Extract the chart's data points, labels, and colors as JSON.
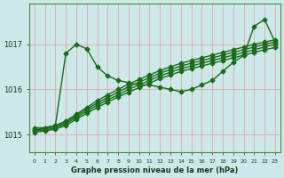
{
  "xlabel": "Graphe pression niveau de la mer (hPa)",
  "bg_color": "#cce8e8",
  "grid_color": "#e8a0a0",
  "line_color": "#1a6b1a",
  "xlim": [
    -0.5,
    23.5
  ],
  "ylim": [
    1014.6,
    1017.9
  ],
  "yticks": [
    1015,
    1016,
    1017
  ],
  "xticks": [
    0,
    1,
    2,
    3,
    4,
    5,
    6,
    7,
    8,
    9,
    10,
    11,
    12,
    13,
    14,
    15,
    16,
    17,
    18,
    19,
    20,
    21,
    22,
    23
  ],
  "series": [
    {
      "x": [
        0,
        1,
        2,
        3,
        4,
        5,
        6,
        7,
        8,
        9,
        10,
        11,
        12,
        13,
        14,
        15,
        16,
        17,
        18,
        19,
        20,
        21,
        22,
        23
      ],
      "y": [
        1015.15,
        1015.15,
        1015.2,
        1016.8,
        1017.0,
        1016.9,
        1016.5,
        1016.3,
        1016.2,
        1016.15,
        1016.1,
        1016.1,
        1016.05,
        1016.0,
        1015.95,
        1016.0,
        1016.1,
        1016.2,
        1016.4,
        1016.6,
        1016.75,
        1017.4,
        1017.55,
        1017.05
      ],
      "marker": "D",
      "markersize": 2.5,
      "linewidth": 1.0,
      "linestyle": "-"
    },
    {
      "x": [
        0,
        1,
        2,
        3,
        4,
        5,
        6,
        7,
        8,
        9,
        10,
        11,
        12,
        13,
        14,
        15,
        16,
        17,
        18,
        19,
        20,
        21,
        22,
        23
      ],
      "y": [
        1015.1,
        1015.15,
        1015.2,
        1015.3,
        1015.45,
        1015.6,
        1015.75,
        1015.88,
        1016.0,
        1016.12,
        1016.22,
        1016.32,
        1016.42,
        1016.5,
        1016.58,
        1016.64,
        1016.7,
        1016.76,
        1016.82,
        1016.88,
        1016.94,
        1017.0,
        1017.05,
        1017.1
      ],
      "marker": "D",
      "markersize": 2.5,
      "linewidth": 1.0,
      "linestyle": "-"
    },
    {
      "x": [
        0,
        1,
        2,
        3,
        4,
        5,
        6,
        7,
        8,
        9,
        10,
        11,
        12,
        13,
        14,
        15,
        16,
        17,
        18,
        19,
        20,
        21,
        22,
        23
      ],
      "y": [
        1015.1,
        1015.13,
        1015.18,
        1015.27,
        1015.42,
        1015.56,
        1015.7,
        1015.82,
        1015.94,
        1016.06,
        1016.16,
        1016.26,
        1016.36,
        1016.44,
        1016.52,
        1016.58,
        1016.64,
        1016.7,
        1016.76,
        1016.82,
        1016.88,
        1016.94,
        1017.0,
        1017.05
      ],
      "marker": "D",
      "markersize": 2.5,
      "linewidth": 1.0,
      "linestyle": "-"
    },
    {
      "x": [
        0,
        1,
        2,
        3,
        4,
        5,
        6,
        7,
        8,
        9,
        10,
        11,
        12,
        13,
        14,
        15,
        16,
        17,
        18,
        19,
        20,
        21,
        22,
        23
      ],
      "y": [
        1015.08,
        1015.1,
        1015.15,
        1015.24,
        1015.38,
        1015.52,
        1015.65,
        1015.77,
        1015.88,
        1016.0,
        1016.1,
        1016.2,
        1016.3,
        1016.38,
        1016.46,
        1016.52,
        1016.58,
        1016.64,
        1016.7,
        1016.76,
        1016.82,
        1016.88,
        1016.94,
        1017.0
      ],
      "marker": "D",
      "markersize": 2.5,
      "linewidth": 1.0,
      "linestyle": "-"
    },
    {
      "x": [
        0,
        1,
        2,
        3,
        4,
        5,
        6,
        7,
        8,
        9,
        10,
        11,
        12,
        13,
        14,
        15,
        16,
        17,
        18,
        19,
        20,
        21,
        22,
        23
      ],
      "y": [
        1015.05,
        1015.08,
        1015.12,
        1015.2,
        1015.34,
        1015.47,
        1015.6,
        1015.72,
        1015.83,
        1015.94,
        1016.04,
        1016.14,
        1016.24,
        1016.32,
        1016.4,
        1016.46,
        1016.52,
        1016.58,
        1016.64,
        1016.7,
        1016.76,
        1016.82,
        1016.88,
        1016.93
      ],
      "marker": "D",
      "markersize": 2.5,
      "linewidth": 1.0,
      "linestyle": "-"
    }
  ]
}
